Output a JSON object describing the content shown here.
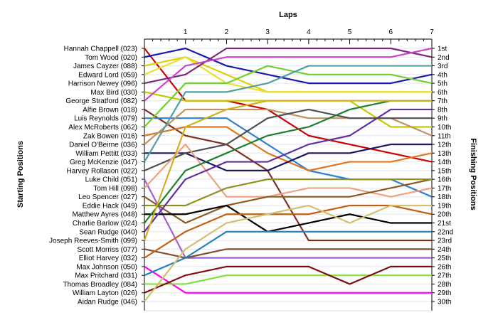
{
  "chart_data": {
    "type": "line",
    "title": "",
    "xlabel": "Laps",
    "ylabel_left": "Starting Positions",
    "ylabel_right": "Finishing Positions",
    "x": [
      0,
      1,
      2,
      3,
      4,
      5,
      6,
      7
    ],
    "xlim": [
      0,
      7
    ],
    "ylim": [
      1,
      30
    ],
    "x_tick_labels": [
      "1",
      "2",
      "3",
      "4",
      "5",
      "6",
      "7"
    ],
    "grid": true,
    "positions_right": [
      "1st",
      "2nd",
      "3rd",
      "4th",
      "5th",
      "6th",
      "7th",
      "8th",
      "9th",
      "10th",
      "11th",
      "12th",
      "13th",
      "14th",
      "15th",
      "16th",
      "17th",
      "18th",
      "19th",
      "20th",
      "21st",
      "22nd",
      "23rd",
      "24th",
      "25th",
      "26th",
      "27th",
      "28th",
      "29th",
      "30th"
    ],
    "series": [
      {
        "name": "Hannah Chappell (023)",
        "color": "#cc0000",
        "values": [
          1,
          7,
          7,
          8,
          11,
          12,
          13,
          14
        ]
      },
      {
        "name": "Tom Wood (020)",
        "color": "#1a1aaa",
        "values": [
          2,
          1,
          3,
          4,
          5,
          5,
          5,
          4
        ]
      },
      {
        "name": "James Cayzer (088)",
        "color": "#e0d000",
        "values": [
          3,
          2,
          4,
          6,
          6,
          6,
          6,
          6
        ]
      },
      {
        "name": "Edward Lord (059)",
        "color": "#e8e030",
        "values": [
          4,
          2,
          5,
          6,
          6,
          6,
          6,
          6
        ]
      },
      {
        "name": "Harrison Newey (096)",
        "color": "#7a2a7a",
        "values": [
          5,
          4,
          1,
          1,
          1,
          1,
          1,
          2
        ]
      },
      {
        "name": "Max Bird (030)",
        "color": "#c8c800",
        "values": [
          6,
          7,
          7,
          7,
          7,
          7,
          10,
          10
        ]
      },
      {
        "name": "George Stratford (082)",
        "color": "#cc44cc",
        "values": [
          7,
          3,
          2,
          2,
          2,
          2,
          2,
          1
        ]
      },
      {
        "name": "Alfie Brown (018)",
        "color": "#803020",
        "values": [
          8,
          11,
          12,
          15,
          23,
          23,
          23,
          23
        ]
      },
      {
        "name": "Luis Reynolds (079)",
        "color": "#3080d0",
        "values": [
          9,
          9,
          9,
          12,
          15,
          16,
          16,
          18
        ]
      },
      {
        "name": "Alex McRoberts (062)",
        "color": "#70d030",
        "values": [
          10,
          5,
          5,
          3,
          4,
          4,
          4,
          5
        ]
      },
      {
        "name": "Zak Bowen (016)",
        "color": "#e07820",
        "values": [
          11,
          10,
          10,
          13,
          15,
          14,
          14,
          13
        ]
      },
      {
        "name": "Daniel O'Beirne (036)",
        "color": "#c09060",
        "values": [
          12,
          8,
          8,
          8,
          9,
          9,
          9,
          11
        ]
      },
      {
        "name": "William Pettitt (033)",
        "color": "#1a1a60",
        "values": [
          13,
          13,
          15,
          15,
          13,
          13,
          12,
          12
        ]
      },
      {
        "name": "Greg McKenzie (047)",
        "color": "#50a0a0",
        "values": [
          14,
          6,
          6,
          5,
          3,
          3,
          3,
          3
        ]
      },
      {
        "name": "Harvey Rollason (022)",
        "color": "#505050",
        "values": [
          15,
          13,
          12,
          9,
          8,
          9,
          9,
          9
        ]
      },
      {
        "name": "Luke Child (051)",
        "color": "#a060d0",
        "values": [
          16,
          25,
          25,
          25,
          25,
          25,
          25,
          25
        ]
      },
      {
        "name": "Tom Hill (098)",
        "color": "#f0a080",
        "values": [
          17,
          12,
          18,
          18,
          17,
          17,
          18,
          17
        ]
      },
      {
        "name": "Leo Spencer (027)",
        "color": "#8a5a20",
        "values": [
          18,
          21,
          19,
          18,
          18,
          18,
          17,
          16
        ]
      },
      {
        "name": "Eddie Hack (049)",
        "color": "#909020",
        "values": [
          19,
          19,
          17,
          16,
          16,
          16,
          16,
          16
        ]
      },
      {
        "name": "Matthew Ayres (048)",
        "color": "#000000",
        "values": [
          20,
          20,
          19,
          22,
          21,
          20,
          21,
          21
        ]
      },
      {
        "name": "Charlie Barlow (024)",
        "color": "#208030",
        "values": [
          21,
          15,
          13,
          11,
          10,
          8,
          7,
          7
        ]
      },
      {
        "name": "Sean Rudge (040)",
        "color": "#6030a0",
        "values": [
          22,
          16,
          14,
          14,
          12,
          11,
          8,
          8
        ]
      },
      {
        "name": "Joseph Reeves-Smith (099)",
        "color": "#d0b020",
        "values": [
          23,
          10,
          8,
          7,
          7,
          7,
          7,
          7
        ]
      },
      {
        "name": "Scott Morriss (077)",
        "color": "#805030",
        "values": [
          24,
          25,
          24,
          24,
          24,
          24,
          24,
          24
        ]
      },
      {
        "name": "Elliot Harvey (032)",
        "color": "#c06010",
        "values": [
          25,
          22,
          20,
          20,
          20,
          19,
          19,
          20
        ]
      },
      {
        "name": "Max Johnson (050)",
        "color": "#ff00ff",
        "values": [
          26,
          29,
          29,
          29,
          29,
          29,
          29,
          29
        ]
      },
      {
        "name": "Max Pritchard (031)",
        "color": "#2080c0",
        "values": [
          27,
          25,
          22,
          22,
          22,
          22,
          22,
          22
        ]
      },
      {
        "name": "Thomas Broadley (084)",
        "color": "#80e040",
        "values": [
          28,
          28,
          27,
          27,
          27,
          27,
          27,
          27
        ]
      },
      {
        "name": "William Layton (026)",
        "color": "#801010",
        "values": [
          29,
          27,
          26,
          26,
          26,
          28,
          26,
          26
        ]
      },
      {
        "name": "Aidan Rudge (046)",
        "color": "#d0c070",
        "values": [
          30,
          24,
          21,
          20,
          19,
          21,
          19,
          19
        ]
      }
    ]
  }
}
